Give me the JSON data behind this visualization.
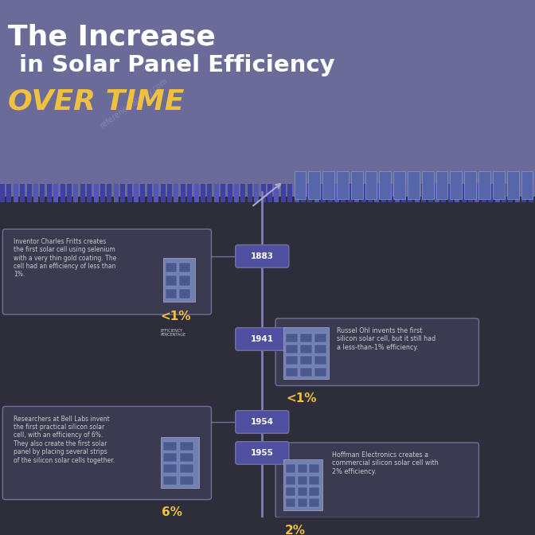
{
  "title_line1": "The Increase",
  "title_line2": "in Solar Panel Efficiency",
  "title_line3": "OVER TIME",
  "bg_top": "#6b6b9a",
  "bg_bottom": "#2e2e3a",
  "title_color_white": "#ffffff",
  "title_color_gold": "#f0c040",
  "timeline_color": "#8080b0",
  "box_bg": "#3a3a50",
  "box_border": "#7070a0",
  "text_color": "#cccccc",
  "efficiency_color": "#f0c040",
  "year_bg": "#5050a0",
  "year_color": "#ffffff",
  "watermark_color": "#ffffff",
  "events": [
    {
      "year": "1883",
      "side": "left",
      "desc": "Inventor Charles Fritts creates\nthe first solar cell using selenium\nwith a very thin gold coating. The\ncell had an efficiency of less than\n1%.",
      "efficiency": "<1%",
      "show_label": true
    },
    {
      "year": "1941",
      "side": "right",
      "desc": "Russel Ohl invents the first\nsilicon solar cell, but it still had\na less-than-1% efficiency.",
      "efficiency": "<1%",
      "show_label": false
    },
    {
      "year": "1954",
      "side": "left",
      "desc": "Researchers at Bell Labs invent\nthe first practical silicon solar\ncell, with an efficiency of 6%.\nThey also create the first solar\npanel by placing several strips\nof the silicon solar cells together.",
      "efficiency": "6%",
      "show_label": false
    },
    {
      "year": "1955",
      "side": "right",
      "desc": "Hoffman Electronics creates a\ncommercial silicon solar cell with\n2% efficiency.",
      "efficiency": "2%",
      "show_label": false
    }
  ]
}
